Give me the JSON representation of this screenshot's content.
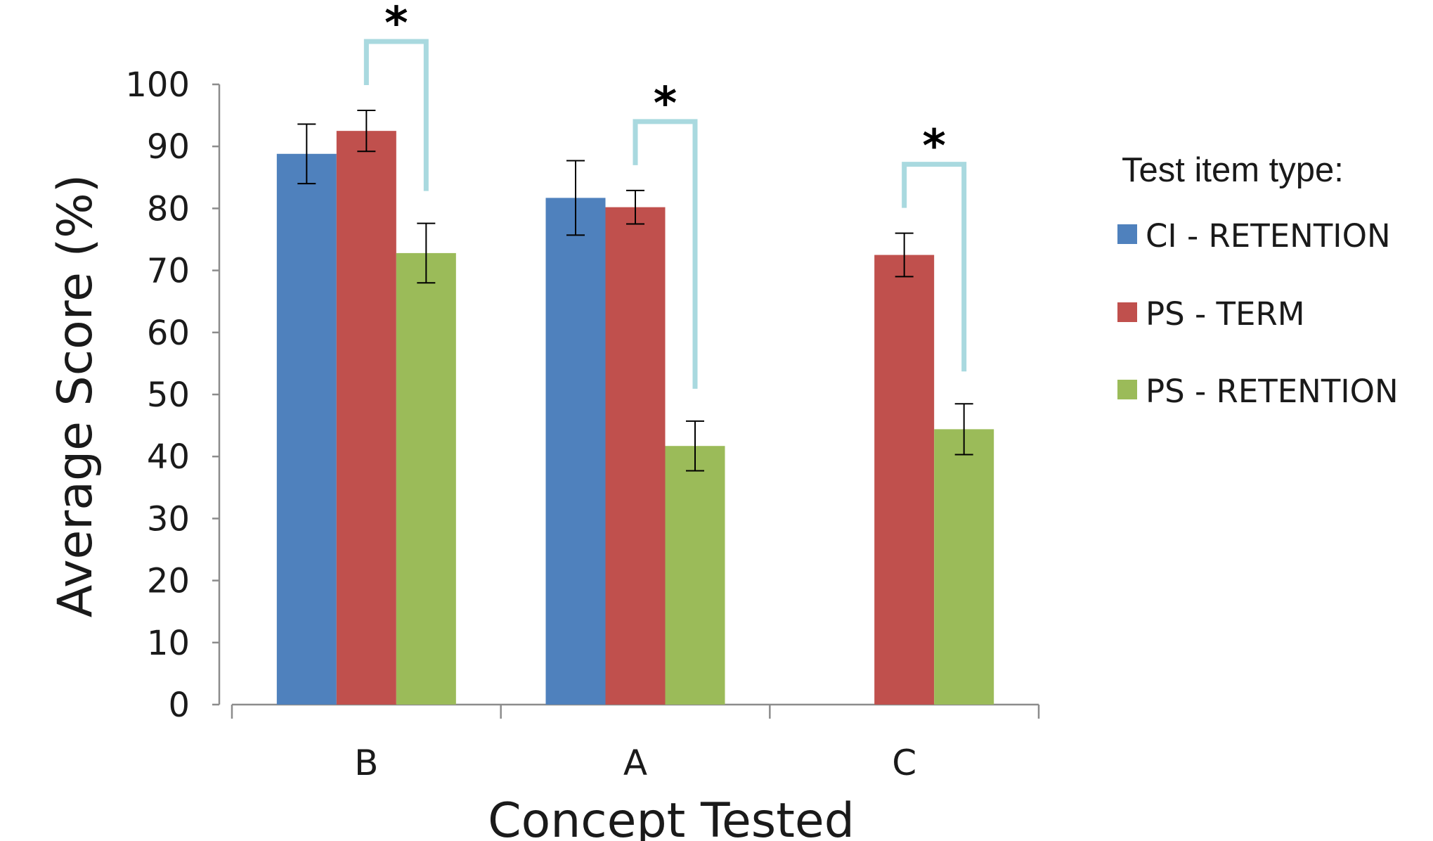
{
  "chart_data": {
    "type": "bar",
    "title": "",
    "xlabel": "Concept Tested",
    "ylabel": "Average Score (%)",
    "ylim": [
      0,
      100
    ],
    "yticks": [
      "0",
      "10",
      "20",
      "30",
      "40",
      "50",
      "60",
      "70",
      "80",
      "90",
      "100"
    ],
    "categories": [
      "B",
      "A",
      "C"
    ],
    "legend_title": "Test item type:",
    "legend_position": "right",
    "series": [
      {
        "name": "CI - RETENTION",
        "color": "#4f81bd",
        "values": [
          88.8,
          81.7,
          null
        ],
        "errors": [
          4.8,
          6.0,
          null
        ]
      },
      {
        "name": "PS - TERM",
        "color": "#c0504d",
        "values": [
          92.5,
          80.2,
          72.5
        ],
        "errors": [
          3.3,
          2.7,
          3.5
        ]
      },
      {
        "name": "PS - RETENTION",
        "color": "#9bbb59",
        "values": [
          72.8,
          41.7,
          44.4
        ],
        "errors": [
          4.8,
          4.0,
          4.1
        ]
      }
    ],
    "significance_marker": "*",
    "significance_color": "#a9d9df",
    "significance_brackets": [
      {
        "category": "B",
        "from_series": 1,
        "to_series": 2
      },
      {
        "category": "A",
        "from_series": 1,
        "to_series": 2
      },
      {
        "category": "C",
        "from_series": 1,
        "to_series": 2
      }
    ],
    "grid": false
  }
}
